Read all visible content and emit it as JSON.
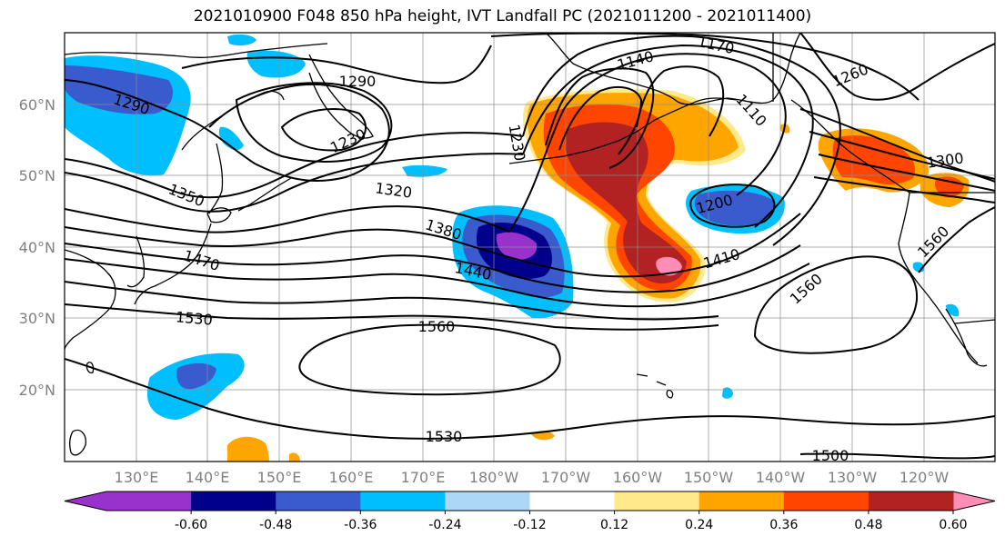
{
  "title": "2021010900 F048 850 hPa height, IVT Landfall PC (2021011200 - 2021011400)",
  "colors": {
    "purple": "#9932cc",
    "navy": "#00008b",
    "royal": "#3a5bcd",
    "deepsky": "#00bfff",
    "lightblue": "#add8f5",
    "white": "#ffffff",
    "yellow": "#ffe98a",
    "orange": "#ffa500",
    "redorange": "#ff4500",
    "firebrick": "#b22222",
    "pink": "#ff8db5"
  },
  "map": {
    "lat_labels": [
      "60°N",
      "50°N",
      "40°N",
      "30°N",
      "20°N"
    ],
    "lon_labels": [
      "130°E",
      "140°E",
      "150°E",
      "160°E",
      "170°E",
      "180°W",
      "170°W",
      "160°W",
      "150°W",
      "140°W",
      "130°W",
      "120°W"
    ],
    "contour_labels": [
      "1290",
      "1290",
      "1230",
      "1230",
      "1170",
      "1140",
      "1110",
      "1260",
      "1200",
      "1300",
      "1350",
      "1320",
      "1380",
      "1440",
      "1410",
      "1470",
      "1530",
      "1560",
      "1560",
      "1560",
      "1530",
      "1500"
    ]
  },
  "colorbar": {
    "tick_labels": [
      "-0.60",
      "-0.48",
      "-0.36",
      "-0.24",
      "-0.12",
      "0.12",
      "0.24",
      "0.36",
      "0.48",
      "0.60"
    ],
    "tick_values": [
      -0.6,
      -0.48,
      -0.36,
      -0.24,
      -0.12,
      0.12,
      0.24,
      0.36,
      0.48,
      0.6
    ],
    "bin_colors": [
      "#9932cc",
      "#00008b",
      "#3a5bcd",
      "#00bfff",
      "#add8f5",
      "#ffffff",
      "#ffe98a",
      "#ffa500",
      "#ff4500",
      "#b22222",
      "#ff8db5"
    ]
  }
}
